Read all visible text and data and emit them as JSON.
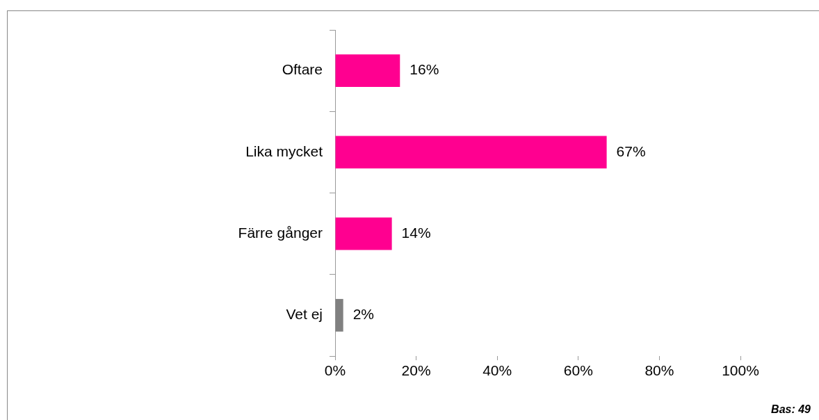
{
  "chart_data": {
    "type": "bar",
    "orientation": "horizontal",
    "categories": [
      "Oftare",
      "Lika mycket",
      "Färre gånger",
      "Vet ej"
    ],
    "values": [
      16,
      67,
      14,
      2
    ],
    "colors": [
      "#ff0090",
      "#ff0090",
      "#ff0090",
      "#808080"
    ],
    "value_labels": [
      "16%",
      "67%",
      "14%",
      "2%"
    ],
    "xlim": [
      0,
      100
    ],
    "xticks": [
      {
        "value": 0,
        "label": "0%"
      },
      {
        "value": 20,
        "label": "20%"
      },
      {
        "value": 40,
        "label": "40%"
      },
      {
        "value": 60,
        "label": "60%"
      },
      {
        "value": 80,
        "label": "80%"
      },
      {
        "value": 100,
        "label": "100%"
      }
    ],
    "grid": false,
    "legend": false,
    "annotations": [
      "Bas: 49"
    ]
  }
}
